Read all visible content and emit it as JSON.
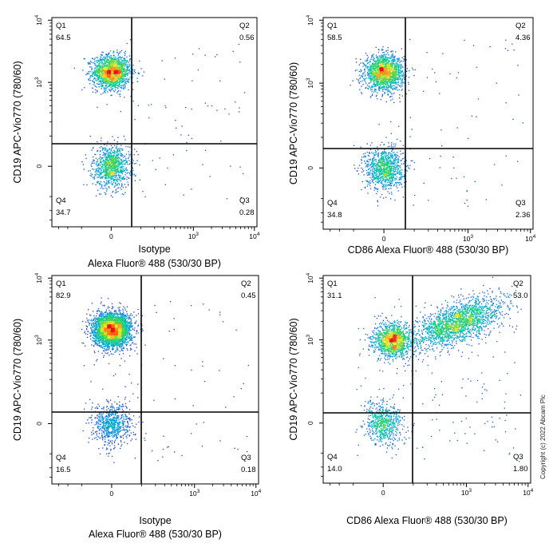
{
  "copyright": "Copyright (c) 2022 Abcam Plc",
  "chart_data": [
    {
      "type": "scatter",
      "ylabel": "CD19 APC-Vio770 (780/60)",
      "xlabel_line1": "Isotype",
      "xlabel_line2": "Alexa Fluor® 488  (530/30 BP)",
      "x_scale": "biexponential",
      "y_scale": "biexponential",
      "x_ticks": [
        {
          "label": "0"
        },
        {
          "label": "10",
          "exp": "3"
        },
        {
          "label": "10",
          "exp": "4"
        }
      ],
      "y_ticks": [
        {
          "label": "0"
        },
        {
          "label": "10",
          "exp": "3"
        },
        {
          "label": "10",
          "exp": "4"
        }
      ],
      "gate": {
        "x": 0.3,
        "y": 0.3
      },
      "quadrants": [
        {
          "name": "Q1",
          "value": "64.5"
        },
        {
          "name": "Q2",
          "value": "0.56"
        },
        {
          "name": "Q3",
          "value": "0.28"
        },
        {
          "name": "Q4",
          "value": "34.7"
        }
      ],
      "populations": [
        {
          "x": 0.0,
          "y": 1500,
          "n": 1700
        },
        {
          "x": 0.0,
          "y": 0.0,
          "n": 1000
        }
      ]
    },
    {
      "type": "scatter",
      "ylabel": "CD19 APC-Vio770 (780/60)",
      "xlabel_line1": "",
      "xlabel_line2": "CD86 Alexa Fluor® 488  (530/30 BP)",
      "x_scale": "biexponential",
      "y_scale": "biexponential",
      "x_ticks": [
        {
          "label": "0"
        },
        {
          "label": "10",
          "exp": "3"
        },
        {
          "label": "10",
          "exp": "4"
        }
      ],
      "y_ticks": [
        {
          "label": "0"
        },
        {
          "label": "10",
          "exp": "3"
        },
        {
          "label": "10",
          "exp": "4"
        }
      ],
      "gate": {
        "x": 0.3,
        "y": 0.3
      },
      "quadrants": [
        {
          "name": "Q1",
          "value": "58.5"
        },
        {
          "name": "Q2",
          "value": "4.36"
        },
        {
          "name": "Q3",
          "value": "2.36"
        },
        {
          "name": "Q4",
          "value": "34.8"
        }
      ],
      "populations": [
        {
          "x": 0.0,
          "y": 1500,
          "n": 1700
        },
        {
          "x": 0.0,
          "y": 0.0,
          "n": 1000
        }
      ]
    },
    {
      "type": "scatter",
      "ylabel": "CD19 APC-Vio770 (780/60)",
      "xlabel_line1": "Isotype",
      "xlabel_line2": "Alexa Fluor® 488  (530/30 BP)",
      "x_scale": "biexponential",
      "y_scale": "biexponential",
      "x_ticks": [
        {
          "label": "0"
        },
        {
          "label": "10",
          "exp": "3"
        },
        {
          "label": "10",
          "exp": "4"
        }
      ],
      "y_ticks": [
        {
          "label": "0"
        },
        {
          "label": "10",
          "exp": "3"
        },
        {
          "label": "10",
          "exp": "4"
        }
      ],
      "gate": {
        "x": 0.3,
        "y": 0.3
      },
      "quadrants": [
        {
          "name": "Q1",
          "value": "82.9"
        },
        {
          "name": "Q2",
          "value": "0.45"
        },
        {
          "name": "Q3",
          "value": "0.18"
        },
        {
          "name": "Q4",
          "value": "16.5"
        }
      ],
      "populations": [
        {
          "x": 0.0,
          "y": 1500,
          "n": 3400
        },
        {
          "x": 0.0,
          "y": 0.0,
          "n": 700
        }
      ]
    },
    {
      "type": "scatter",
      "ylabel": "CD19 APC-Vio770 (780/60)",
      "xlabel_line1": "",
      "xlabel_line2": "CD86 Alexa Fluor® 488  (530/30 BP)",
      "x_scale": "biexponential",
      "y_scale": "biexponential",
      "x_ticks": [
        {
          "label": "0"
        },
        {
          "label": "10",
          "exp": "3"
        },
        {
          "label": "10",
          "exp": "4"
        }
      ],
      "y_ticks": [
        {
          "label": "0"
        },
        {
          "label": "10",
          "exp": "3"
        },
        {
          "label": "10",
          "exp": "4"
        }
      ],
      "gate": {
        "x": 0.3,
        "y": 0.3
      },
      "quadrants": [
        {
          "name": "Q1",
          "value": "31.1"
        },
        {
          "name": "Q2",
          "value": "53.0"
        },
        {
          "name": "Q3",
          "value": "1.80"
        },
        {
          "name": "Q4",
          "value": "14.0"
        }
      ],
      "populations": [
        {
          "x": 20,
          "y": 1000,
          "n": 1300
        },
        {
          "x": 700,
          "y": 1900,
          "n": 2000
        },
        {
          "x": 0.0,
          "y": 0.0,
          "n": 650
        }
      ]
    }
  ]
}
